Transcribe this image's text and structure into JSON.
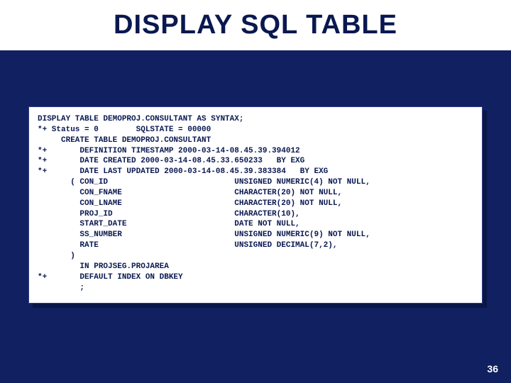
{
  "slide": {
    "title": "DISPLAY SQL TABLE",
    "page_number": "36",
    "background_color": "#102060",
    "panel_background": "#ffffff",
    "text_color": "#0a1850",
    "title_fontsize": 38,
    "code_fontsize": 11,
    "code_font": "Courier New"
  },
  "code": {
    "l01": "DISPLAY TABLE DEMOPROJ.CONSULTANT AS SYNTAX;",
    "l02": "*+ Status = 0        SQLSTATE = 00000",
    "l03": "     CREATE TABLE DEMOPROJ.CONSULTANT",
    "l04": "*+       DEFINITION TIMESTAMP 2000-03-14-08.45.39.394012",
    "l05": "*+       DATE CREATED 2000-03-14-08.45.33.650233   BY EXG",
    "l06": "*+       DATE LAST UPDATED 2000-03-14-08.45.39.383384   BY EXG",
    "l07": "       ( CON_ID                           UNSIGNED NUMERIC(4) NOT NULL,",
    "l08": "         CON_FNAME                        CHARACTER(20) NOT NULL,",
    "l09": "         CON_LNAME                        CHARACTER(20) NOT NULL,",
    "l10": "         PROJ_ID                          CHARACTER(10),",
    "l11": "         START_DATE                       DATE NOT NULL,",
    "l12": "         SS_NUMBER                        UNSIGNED NUMERIC(9) NOT NULL,",
    "l13": "         RATE                             UNSIGNED DECIMAL(7,2),",
    "l14": "       )",
    "l15": "         IN PROJSEG.PROJAREA",
    "l16": "*+       DEFAULT INDEX ON DBKEY",
    "l17": "         ;"
  }
}
